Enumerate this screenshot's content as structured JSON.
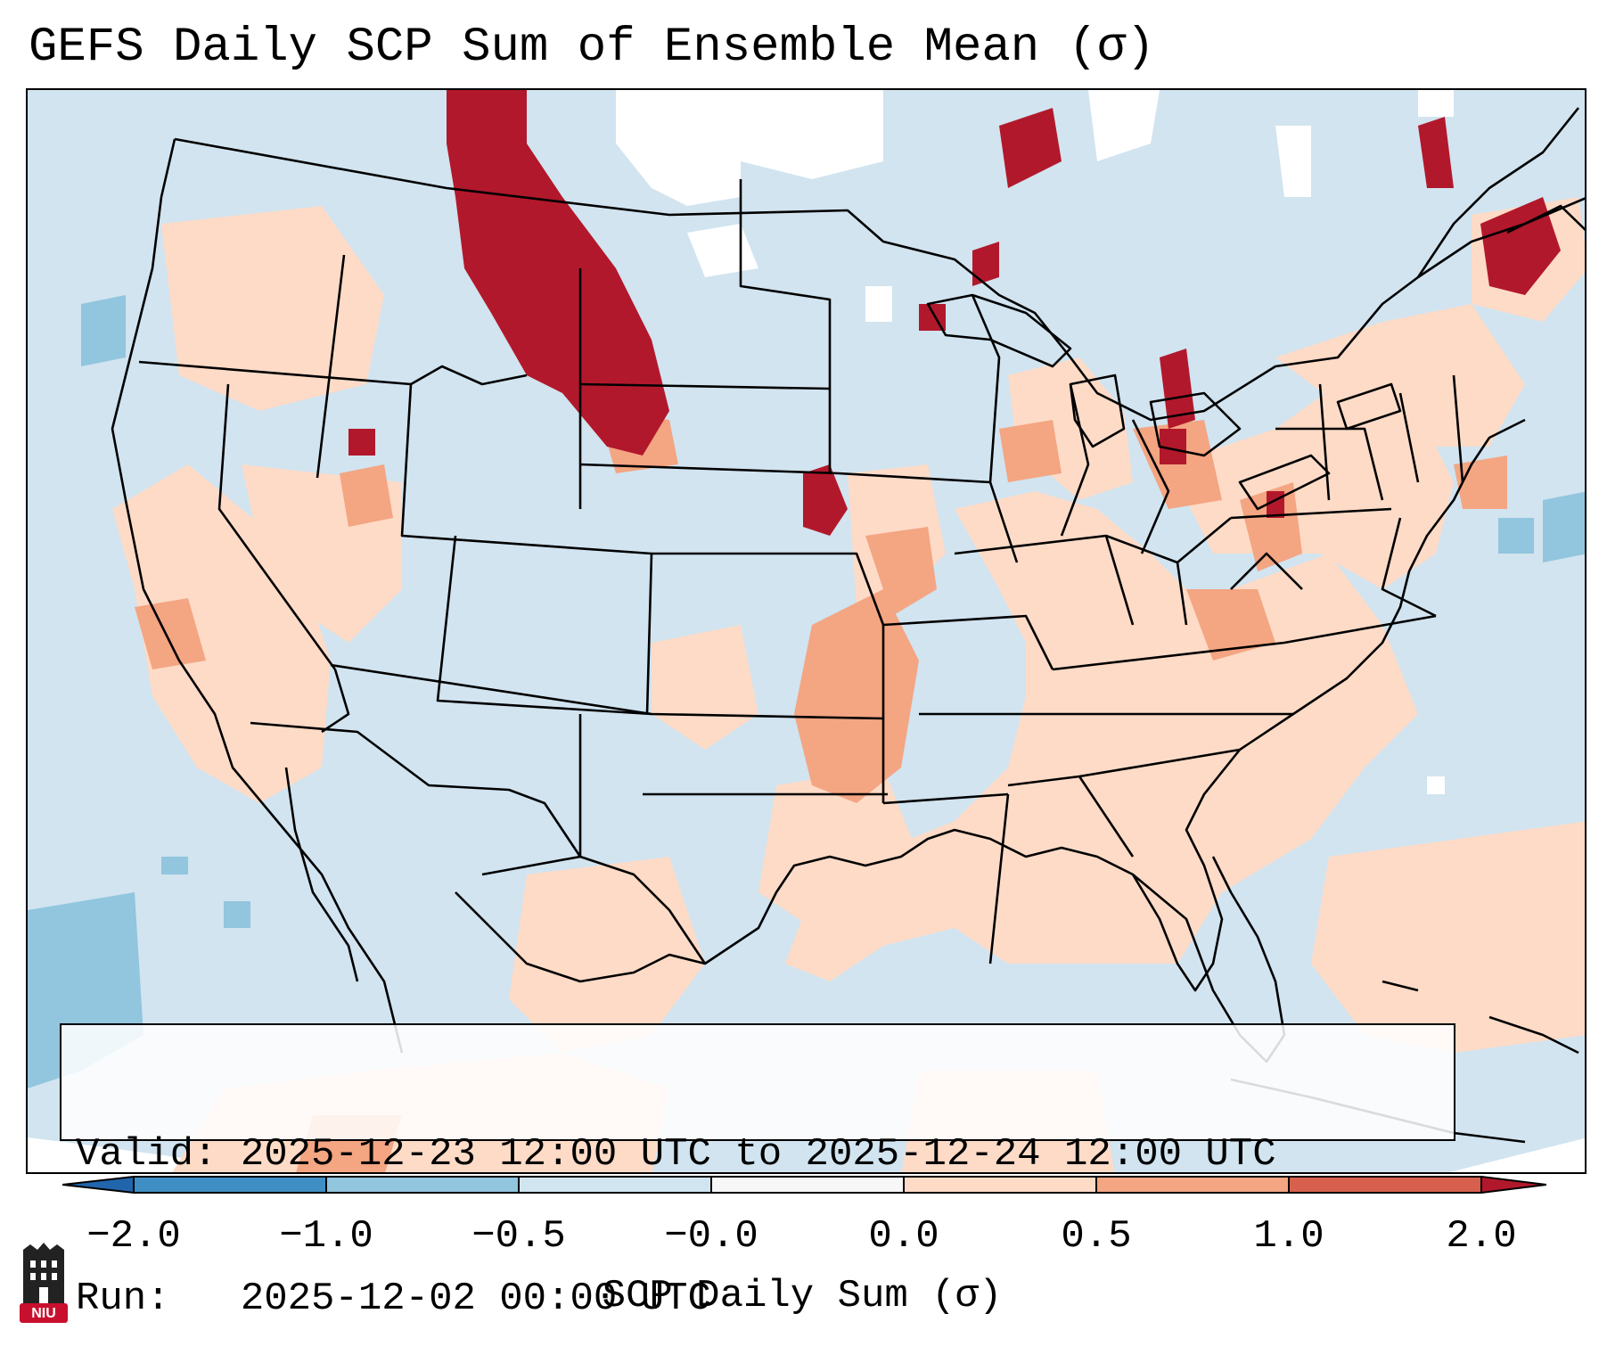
{
  "title": "GEFS Daily SCP Sum of Ensemble Mean (σ)",
  "info": {
    "valid_line": "Valid: 2025-12-23 12:00 UTC to 2025-12-24 12:00 UTC",
    "run_line": "Run:   2025-12-02 00:00 UTC"
  },
  "colorbar": {
    "label": "SCP Daily Sum (σ)",
    "ticks": [
      "−2.0",
      "−1.0",
      "−0.5",
      "−0.0",
      "0.0",
      "0.5",
      "1.0",
      "2.0"
    ],
    "colors": [
      "#3f8fc4",
      "#92c5de",
      "#d1e5f0",
      "#f7f7f7",
      "#fddbc7",
      "#f4a582",
      "#d6604d",
      "#b2182b"
    ],
    "extend_low_color": "#2166ac",
    "extend_high_color": "#b2182b"
  },
  "map": {
    "background_class": "#d1e4f0",
    "region": "Contiguous United States"
  },
  "logo": {
    "text": "NIU",
    "icon": "niu-castle-logo-icon",
    "color": "#c8102e"
  }
}
